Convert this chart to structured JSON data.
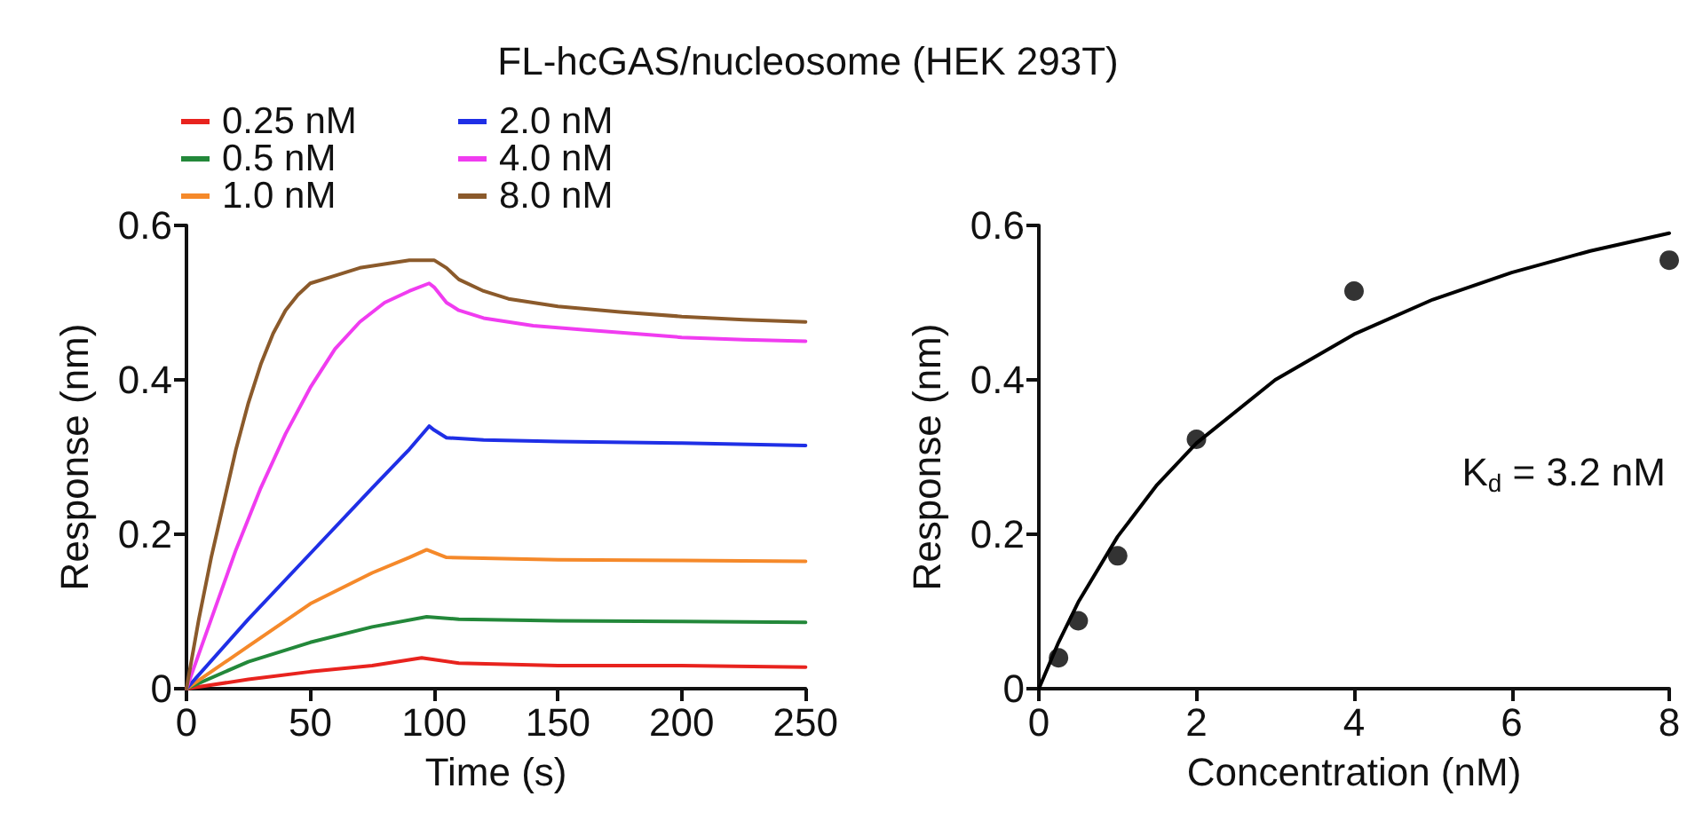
{
  "chart_data": [
    {
      "type": "line",
      "title": "FL-hcGAS/nucleosome (HEK 293T)",
      "xlabel": "Time (s)",
      "ylabel": "Response (nm)",
      "xlim": [
        0,
        250
      ],
      "xticks": [
        0,
        50,
        100,
        150,
        200,
        250
      ],
      "ylim": [
        0,
        0.6
      ],
      "yticks": [
        0,
        0.2,
        0.4,
        0.6
      ],
      "legend": "top left",
      "marker": "none",
      "line_style": "solid",
      "series": [
        {
          "name": "0.25 nM",
          "color": "#e8231e",
          "x": [
            0,
            25,
            50,
            75,
            95,
            110,
            150,
            200,
            250
          ],
          "values": [
            0,
            0.012,
            0.022,
            0.03,
            0.04,
            0.033,
            0.03,
            0.03,
            0.028
          ]
        },
        {
          "name": "0.5 nM",
          "color": "#23883a",
          "x": [
            0,
            25,
            50,
            75,
            97,
            110,
            150,
            200,
            250
          ],
          "values": [
            0,
            0.035,
            0.06,
            0.08,
            0.093,
            0.09,
            0.088,
            0.087,
            0.086
          ]
        },
        {
          "name": "1.0 nM",
          "color": "#f5892a",
          "x": [
            0,
            25,
            50,
            75,
            90,
            97,
            105,
            150,
            200,
            250
          ],
          "values": [
            0,
            0.055,
            0.11,
            0.15,
            0.17,
            0.18,
            0.17,
            0.167,
            0.166,
            0.165
          ]
        },
        {
          "name": "2.0 nM",
          "color": "#1f2fe6",
          "x": [
            0,
            25,
            50,
            75,
            90,
            98,
            100,
            105,
            120,
            150,
            200,
            250
          ],
          "values": [
            0,
            0.09,
            0.175,
            0.26,
            0.31,
            0.34,
            0.335,
            0.325,
            0.322,
            0.32,
            0.318,
            0.315
          ]
        },
        {
          "name": "4.0 nM",
          "color": "#f03cf0",
          "x": [
            0,
            10,
            20,
            30,
            40,
            50,
            60,
            70,
            80,
            90,
            98,
            100,
            105,
            110,
            120,
            140,
            160,
            180,
            200,
            225,
            250
          ],
          "values": [
            0,
            0.09,
            0.18,
            0.26,
            0.33,
            0.39,
            0.44,
            0.475,
            0.5,
            0.515,
            0.525,
            0.52,
            0.5,
            0.49,
            0.48,
            0.47,
            0.465,
            0.46,
            0.455,
            0.452,
            0.45
          ]
        },
        {
          "name": "8.0 nM",
          "color": "#8b5a2b",
          "x": [
            0,
            5,
            10,
            15,
            20,
            25,
            30,
            35,
            40,
            45,
            50,
            60,
            70,
            80,
            90,
            100,
            105,
            110,
            120,
            130,
            150,
            175,
            200,
            225,
            250
          ],
          "values": [
            0,
            0.09,
            0.17,
            0.24,
            0.31,
            0.37,
            0.42,
            0.46,
            0.49,
            0.51,
            0.525,
            0.535,
            0.545,
            0.55,
            0.555,
            0.555,
            0.545,
            0.53,
            0.515,
            0.505,
            0.495,
            0.488,
            0.482,
            0.478,
            0.475
          ]
        }
      ]
    },
    {
      "type": "scatter",
      "xlabel": "Concentration (nM)",
      "ylabel": "Response (nm)",
      "xlim": [
        0,
        8
      ],
      "xticks": [
        0,
        2,
        4,
        6,
        8
      ],
      "ylim": [
        0,
        0.6
      ],
      "yticks": [
        0,
        0.2,
        0.4,
        0.6
      ],
      "annotations": [
        "K$_{d}$ = 3.2 nM"
      ],
      "series": [
        {
          "color": "#000000",
          "marker": "circle",
          "x": [
            0.25,
            0.5,
            1,
            2,
            4,
            8
          ],
          "values": [
            0.04,
            0.088,
            0.172,
            0.323,
            0.515,
            0.555
          ]
        },
        {
          "type": "line",
          "color": "#000000",
          "marker": "none",
          "x": [
            0,
            0.25,
            0.5,
            1,
            1.5,
            2,
            3,
            4,
            5,
            6,
            7,
            8
          ],
          "values": [
            0,
            0.06,
            0.112,
            0.197,
            0.264,
            0.318,
            0.4,
            0.459,
            0.504,
            0.539,
            0.567,
            0.59
          ]
        }
      ]
    }
  ]
}
